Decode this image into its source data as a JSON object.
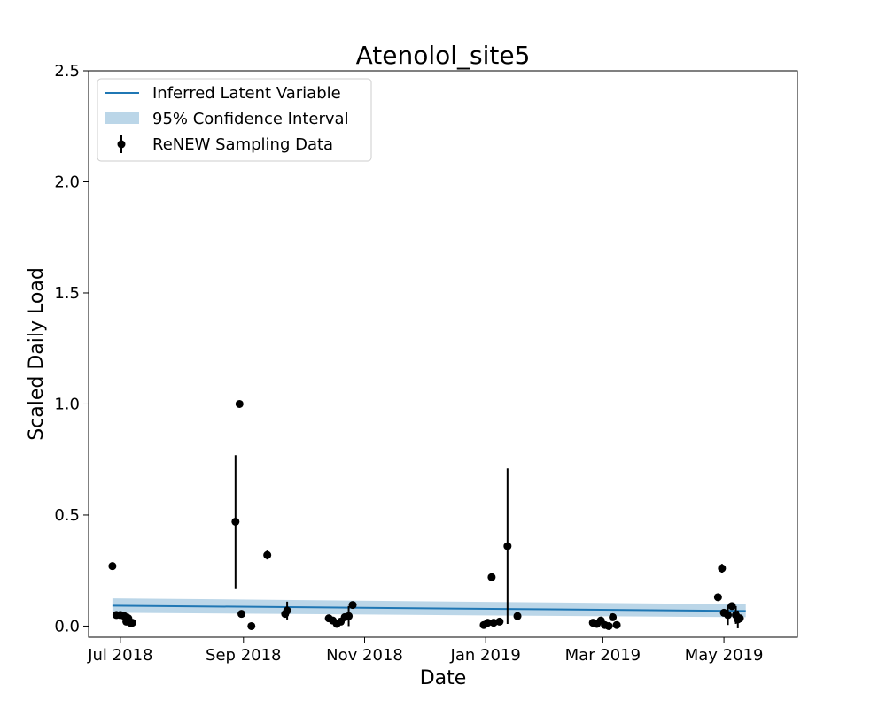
{
  "chart_data": {
    "type": "scatter",
    "title": "Atenolol_site5",
    "xlabel": "Date",
    "ylabel": "Scaled Daily Load",
    "xlim": [
      "2018-06-15",
      "2019-06-07"
    ],
    "ylim": [
      -0.05,
      2.5
    ],
    "grid": false,
    "legend_position": "top-left",
    "x_ticks": [
      {
        "date": "2018-07-01",
        "label": "Jul 2018"
      },
      {
        "date": "2018-09-01",
        "label": "Sep 2018"
      },
      {
        "date": "2018-11-01",
        "label": "Nov 2018"
      },
      {
        "date": "2019-01-01",
        "label": "Jan 2019"
      },
      {
        "date": "2019-03-01",
        "label": "Mar 2019"
      },
      {
        "date": "2019-05-01",
        "label": "May 2019"
      }
    ],
    "y_ticks": [
      {
        "value": 0.0,
        "label": "0.0"
      },
      {
        "value": 0.5,
        "label": "0.5"
      },
      {
        "value": 1.0,
        "label": "1.0"
      },
      {
        "value": 1.5,
        "label": "1.5"
      },
      {
        "value": 2.0,
        "label": "2.0"
      },
      {
        "value": 2.5,
        "label": "2.5"
      }
    ],
    "series": [
      {
        "name": "Inferred Latent Variable",
        "kind": "line",
        "color": "#1f77b4",
        "x": [
          "2018-06-27",
          "2019-05-12"
        ],
        "y": [
          0.092,
          0.068
        ]
      },
      {
        "name": "95% Confidence Interval",
        "kind": "band",
        "color": "#1f77b4",
        "x": [
          "2018-06-27",
          "2019-05-12"
        ],
        "lower": [
          0.06,
          0.04
        ],
        "upper": [
          0.125,
          0.098
        ]
      },
      {
        "name": "ReNEW Sampling Data",
        "kind": "errorbar",
        "color": "#000000",
        "x": [
          "2018-06-27",
          "2018-06-29",
          "2018-07-01",
          "2018-07-03",
          "2018-07-04",
          "2018-07-05",
          "2018-07-06",
          "2018-07-07",
          "2018-08-28",
          "2018-08-30",
          "2018-08-31",
          "2018-09-05",
          "2018-09-13",
          "2018-09-22",
          "2018-09-23",
          "2018-10-14",
          "2018-10-16",
          "2018-10-18",
          "2018-10-20",
          "2018-10-22",
          "2018-10-24",
          "2018-10-26",
          "2018-12-31",
          "2019-01-02",
          "2019-01-05",
          "2019-01-08",
          "2019-01-04",
          "2019-01-12",
          "2019-01-17",
          "2019-02-24",
          "2019-02-26",
          "2019-02-28",
          "2019-03-02",
          "2019-03-04",
          "2019-03-06",
          "2019-03-08",
          "2019-04-28",
          "2019-04-30",
          "2019-05-01",
          "2019-05-03",
          "2019-05-05",
          "2019-05-07",
          "2019-05-08",
          "2019-05-09"
        ],
        "y": [
          0.27,
          0.05,
          0.05,
          0.045,
          0.02,
          0.035,
          0.015,
          0.015,
          0.47,
          1.0,
          0.055,
          0.0,
          0.32,
          0.055,
          0.07,
          0.035,
          0.025,
          0.01,
          0.02,
          0.04,
          0.045,
          0.095,
          0.005,
          0.015,
          0.015,
          0.02,
          0.22,
          0.36,
          0.045,
          0.015,
          0.01,
          0.025,
          0.005,
          0.0,
          0.04,
          0.005,
          0.13,
          0.26,
          0.06,
          0.05,
          0.09,
          0.05,
          0.03,
          0.035
        ],
        "err": [
          0.015,
          0.0,
          0.0,
          0.0,
          0.0,
          0.02,
          0.0,
          0.0,
          0.3,
          0.0,
          0.0,
          0.0,
          0.02,
          0.01,
          0.04,
          0.0,
          0.0,
          0.0,
          0.0,
          0.0,
          0.045,
          0.0,
          0.0,
          0.0,
          0.0,
          0.0,
          0.0,
          0.35,
          0.0,
          0.0,
          0.0,
          0.0,
          0.0,
          0.0,
          0.0,
          0.0,
          0.0,
          0.02,
          0.0,
          0.045,
          0.0,
          0.04,
          0.04,
          0.0
        ]
      }
    ]
  }
}
